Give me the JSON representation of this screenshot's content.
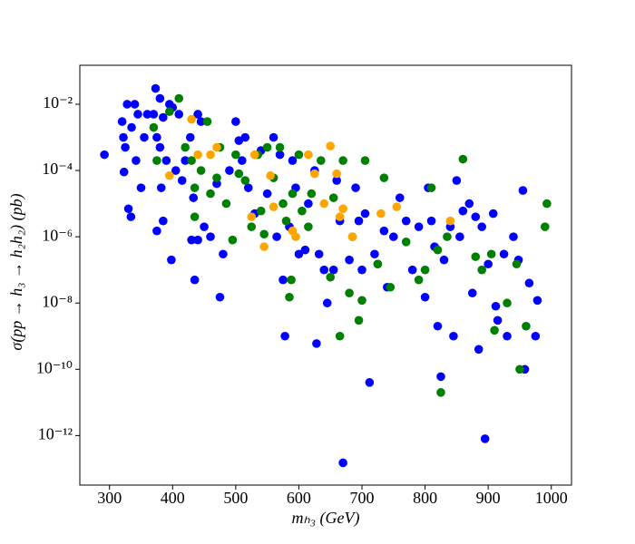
{
  "chart_data": {
    "type": "scatter",
    "xlabel": "mₕ₃ (GeV)",
    "ylabel": "σ(pp → h₃ → h₂h₂)  (pb)",
    "xlim": [
      253,
      1032
    ],
    "xticks": [
      300,
      400,
      500,
      600,
      700,
      800,
      900,
      1000
    ],
    "ylim": [
      3.2e-14,
      0.15
    ],
    "yscale": "log",
    "yticks": [
      {
        "value": 1e-12,
        "label": "10⁻¹²"
      },
      {
        "value": 1e-10,
        "label": "10⁻¹⁰"
      },
      {
        "value": 1e-08,
        "label": "10⁻⁸"
      },
      {
        "value": 1e-06,
        "label": "10⁻⁶"
      },
      {
        "value": 0.0001,
        "label": "10⁻⁴"
      },
      {
        "value": 0.01,
        "label": "10⁻²"
      }
    ],
    "grid": false,
    "series": [
      {
        "color": "#0000ff",
        "x": [
          292,
          320,
          328,
          340,
          345,
          335,
          322,
          325,
          323,
          342,
          350,
          330,
          334,
          373,
          380,
          360,
          370,
          385,
          400,
          395,
          410,
          355,
          375,
          380,
          390,
          382,
          385,
          375,
          398,
          405,
          415,
          420,
          428,
          440,
          445,
          433,
          430,
          435,
          440,
          450,
          460,
          470,
          475,
          480,
          490,
          500,
          505,
          510,
          515,
          520,
          530,
          540,
          550,
          560,
          565,
          570,
          575,
          578,
          585,
          590,
          595,
          600,
          610,
          615,
          625,
          628,
          632,
          640,
          645,
          655,
          660,
          665,
          670,
          680,
          690,
          695,
          700,
          705,
          712,
          720,
          725,
          735,
          740,
          750,
          760,
          770,
          780,
          790,
          800,
          805,
          810,
          815,
          820,
          825,
          830,
          840,
          845,
          850,
          855,
          860,
          870,
          875,
          880,
          885,
          890,
          895,
          900,
          908,
          912,
          915,
          925,
          930,
          940,
          948,
          955,
          958,
          965,
          975,
          978
        ],
        "values": [
          0.0003,
          0.003,
          0.01,
          0.01,
          0.005,
          0.002,
          0.001,
          0.0005,
          9e-05,
          0.0002,
          3e-05,
          7e-06,
          4e-06,
          0.03,
          0.015,
          0.005,
          0.005,
          0.004,
          0.008,
          0.01,
          0.005,
          0.001,
          0.001,
          0.0005,
          0.0002,
          3e-05,
          3e-06,
          1.5e-06,
          2e-07,
          0.0001,
          5e-05,
          0.0002,
          0.001,
          0.005,
          0.003,
          1.5e-05,
          8e-07,
          5e-08,
          8e-07,
          2e-06,
          1e-06,
          4e-05,
          1.5e-08,
          3e-07,
          0.0001,
          0.003,
          0.0008,
          0.0002,
          0.001,
          3e-05,
          5e-06,
          0.0004,
          2e-05,
          0.001,
          1e-06,
          0.0003,
          5e-08,
          1e-09,
          2e-06,
          0.0002,
          3e-05,
          3e-07,
          4e-07,
          1e-05,
          0.0001,
          6e-10,
          3e-07,
          1e-07,
          1e-08,
          1e-07,
          5e-05,
          3e-06,
          1.5e-13,
          2e-07,
          3e-05,
          3e-06,
          1e-07,
          5e-06,
          4e-11,
          3e-07,
          1.5e-07,
          1.5e-06,
          3e-08,
          1e-06,
          1.5e-05,
          3e-06,
          1e-07,
          2e-06,
          1.5e-08,
          3e-05,
          3e-06,
          5e-07,
          2e-09,
          6e-11,
          2e-07,
          2e-06,
          1e-09,
          5e-05,
          1e-06,
          6e-06,
          1e-05,
          2e-08,
          4e-06,
          4e-10,
          2e-06,
          8e-13,
          1.5e-07,
          5e-06,
          8e-09,
          3e-09,
          3e-07,
          1e-09,
          1e-06,
          2e-07,
          2.5e-05,
          1e-10,
          4e-08,
          1e-09,
          1.2e-08
        ]
      },
      {
        "color": "#008000",
        "x": [
          370,
          375,
          395,
          410,
          420,
          430,
          435,
          435,
          445,
          455,
          460,
          470,
          475,
          485,
          495,
          500,
          505,
          515,
          525,
          535,
          540,
          545,
          550,
          560,
          570,
          575,
          580,
          585,
          588,
          590,
          600,
          605,
          615,
          620,
          635,
          650,
          655,
          665,
          670,
          680,
          685,
          695,
          700,
          705,
          725,
          735,
          745,
          770,
          790,
          800,
          810,
          820,
          825,
          835,
          860,
          880,
          890,
          905,
          910,
          930,
          945,
          950,
          960,
          990,
          993
        ],
        "values": [
          0.002,
          0.0002,
          0.006,
          0.015,
          0.0005,
          0.0002,
          3e-05,
          4e-06,
          0.0001,
          0.003,
          2e-05,
          6e-05,
          0.0005,
          1e-05,
          8e-07,
          0.0003,
          8e-05,
          5e-05,
          2e-06,
          0.0003,
          6e-06,
          1.2e-06,
          0.0005,
          6e-05,
          0.0005,
          1e-05,
          3e-06,
          1.5e-08,
          5e-08,
          2e-05,
          0.0003,
          6e-06,
          2e-06,
          2e-05,
          0.0002,
          6e-08,
          1.5e-05,
          1e-09,
          0.0002,
          2e-08,
          1e-06,
          3e-09,
          1.2e-08,
          0.0002,
          1.5e-07,
          6e-05,
          3e-08,
          7e-07,
          5e-08,
          1e-07,
          3e-05,
          4e-07,
          2e-11,
          1e-06,
          0.00022,
          2.5e-07,
          1e-07,
          3e-07,
          1.5e-09,
          1e-08,
          1.5e-07,
          1e-10,
          2e-09,
          2e-06,
          1e-05
        ]
      },
      {
        "color": "#ffa500",
        "x": [
          395,
          430,
          440,
          460,
          470,
          525,
          530,
          545,
          555,
          560,
          590,
          595,
          615,
          625,
          640,
          650,
          660,
          665,
          670,
          685,
          730,
          755,
          840
        ],
        "values": [
          7e-05,
          0.0035,
          0.0003,
          0.0003,
          0.0005,
          4e-06,
          0.0003,
          5e-07,
          7e-05,
          8e-06,
          1.5e-06,
          1e-06,
          0.0003,
          8e-05,
          1e-05,
          0.00055,
          8e-05,
          4e-06,
          7e-06,
          1e-06,
          5e-06,
          8e-06,
          3e-06
        ]
      }
    ]
  }
}
